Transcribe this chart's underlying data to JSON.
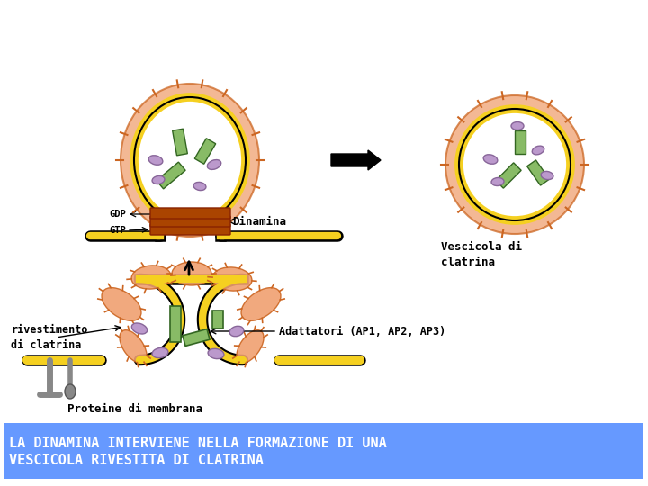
{
  "title": "LA DINAMINA INTERVIENE NELLA FORMAZIONE DI UNA\nVESCICOLA RIVESTITA DI CLATRINA",
  "title_bg": "#6699ff",
  "title_color": "white",
  "subtitle": "Proteine di membrana",
  "label_rivestimento": "rivestimento\ndi clatrina",
  "label_adattatori": "Adattatori (AP1, AP2, AP3)",
  "label_dinamina": "Dinamina",
  "label_gtp": "GTP",
  "label_gdp": "GDP",
  "label_vescicola": "Vescicola di\nclatrina",
  "color_membrane": "#f5d020",
  "color_clathrin_coat": "#f0a070",
  "color_adaptor": "#88bb66",
  "color_receptor": "#888888",
  "color_ellipse": "#bb99cc",
  "color_dynamin": "#aa4400",
  "bg_color": "#ffffff",
  "font_family": "monospace"
}
